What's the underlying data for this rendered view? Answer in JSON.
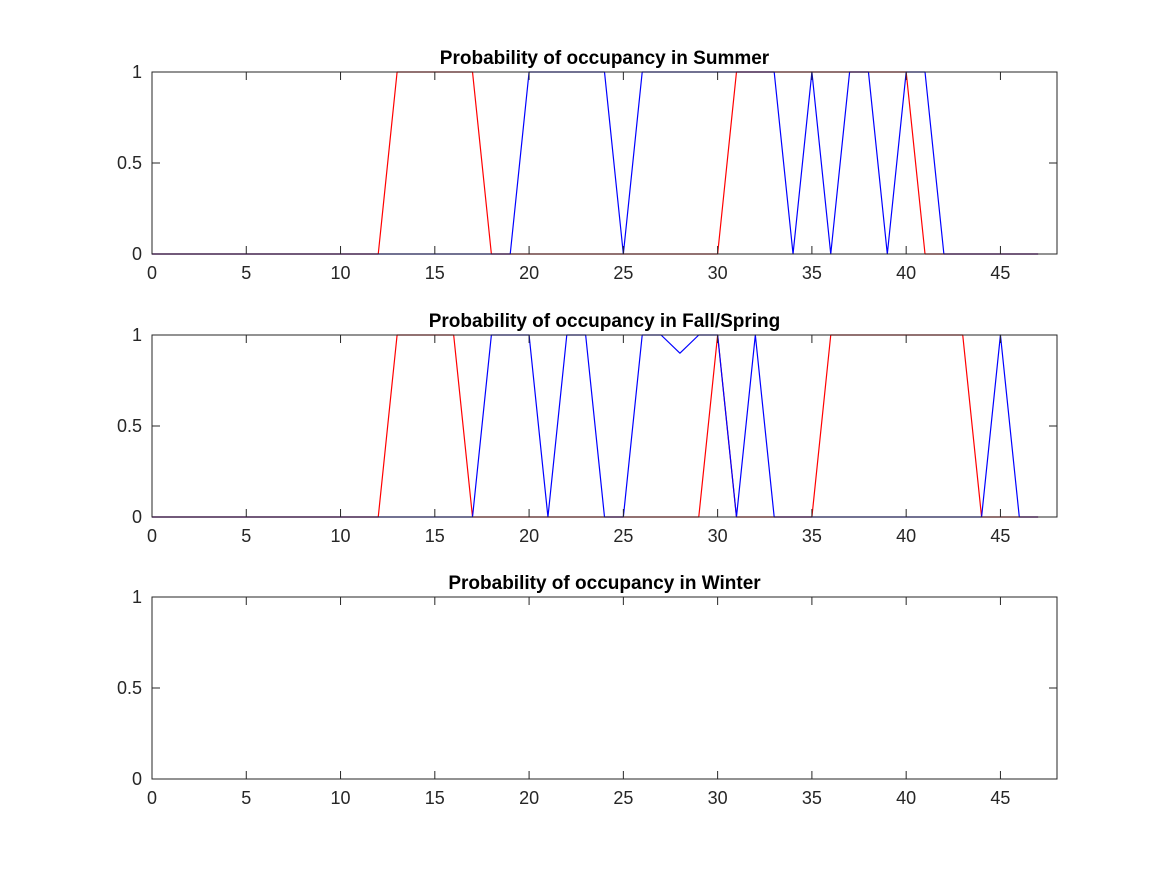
{
  "chart_data": [
    {
      "type": "line",
      "title": "Probability of occupancy in Summer",
      "xlabel": "",
      "ylabel": "",
      "xlim": [
        0,
        48
      ],
      "ylim": [
        0,
        1
      ],
      "xticks": [
        0,
        5,
        10,
        15,
        20,
        25,
        30,
        35,
        40,
        45
      ],
      "xtick_labels": [
        "0",
        "5",
        "10",
        "15",
        "20",
        "25",
        "30",
        "35",
        "40",
        "45"
      ],
      "yticks": [
        0,
        0.5,
        1
      ],
      "ytick_labels": [
        "0",
        "0.5",
        "1"
      ],
      "grid": false,
      "series": [
        {
          "color": "#ff0000",
          "x": [
            0,
            1,
            2,
            3,
            4,
            5,
            6,
            7,
            8,
            9,
            10,
            11,
            12,
            13,
            14,
            15,
            16,
            17,
            18,
            19,
            20,
            21,
            22,
            23,
            24,
            25,
            26,
            27,
            28,
            29,
            30,
            31,
            32,
            33,
            34,
            35,
            36,
            37,
            38,
            39,
            40,
            41,
            42,
            43,
            44,
            45,
            46,
            47
          ],
          "y": [
            0,
            0,
            0,
            0,
            0,
            0,
            0,
            0,
            0,
            0,
            0,
            0,
            0,
            1,
            1,
            1,
            1,
            1,
            0,
            0,
            0,
            0,
            0,
            0,
            0,
            0,
            0,
            0,
            0,
            0,
            0,
            1,
            1,
            1,
            1,
            1,
            1,
            1,
            1,
            1,
            1,
            0,
            0,
            0,
            0,
            0,
            0,
            0
          ]
        },
        {
          "color": "#0000ff",
          "x": [
            0,
            1,
            2,
            3,
            4,
            5,
            6,
            7,
            8,
            9,
            10,
            11,
            12,
            13,
            14,
            15,
            16,
            17,
            18,
            19,
            20,
            21,
            22,
            23,
            24,
            25,
            26,
            27,
            28,
            29,
            30,
            31,
            32,
            33,
            34,
            35,
            36,
            37,
            38,
            39,
            40,
            41,
            42,
            43,
            44,
            45,
            46,
            47
          ],
          "y": [
            0,
            0,
            0,
            0,
            0,
            0,
            0,
            0,
            0,
            0,
            0,
            0,
            0,
            0,
            0,
            0,
            0,
            0,
            0,
            0,
            1,
            1,
            1,
            1,
            1,
            0,
            1,
            1,
            1,
            1,
            1,
            1,
            1,
            1,
            0,
            1,
            0,
            1,
            1,
            0,
            1,
            1,
            0,
            0,
            0,
            0,
            0,
            0
          ]
        }
      ]
    },
    {
      "type": "line",
      "title": "Probability of occupancy in Fall/Spring",
      "xlabel": "",
      "ylabel": "",
      "xlim": [
        0,
        48
      ],
      "ylim": [
        0,
        1
      ],
      "xticks": [
        0,
        5,
        10,
        15,
        20,
        25,
        30,
        35,
        40,
        45
      ],
      "xtick_labels": [
        "0",
        "5",
        "10",
        "15",
        "20",
        "25",
        "30",
        "35",
        "40",
        "45"
      ],
      "yticks": [
        0,
        0.5,
        1
      ],
      "ytick_labels": [
        "0",
        "0.5",
        "1"
      ],
      "grid": false,
      "series": [
        {
          "color": "#ff0000",
          "x": [
            0,
            1,
            2,
            3,
            4,
            5,
            6,
            7,
            8,
            9,
            10,
            11,
            12,
            13,
            14,
            15,
            16,
            17,
            18,
            19,
            20,
            21,
            22,
            23,
            24,
            25,
            26,
            27,
            28,
            29,
            30,
            31,
            32,
            33,
            34,
            35,
            36,
            37,
            38,
            39,
            40,
            41,
            42,
            43,
            44,
            45,
            46,
            47
          ],
          "y": [
            0,
            0,
            0,
            0,
            0,
            0,
            0,
            0,
            0,
            0,
            0,
            0,
            0,
            1,
            1,
            1,
            1,
            0,
            0,
            0,
            0,
            0,
            0,
            0,
            0,
            0,
            0,
            0,
            0,
            0,
            1,
            0,
            0,
            0,
            0,
            0,
            1,
            1,
            1,
            1,
            1,
            1,
            1,
            1,
            0,
            0,
            0,
            0
          ]
        },
        {
          "color": "#0000ff",
          "x": [
            0,
            1,
            2,
            3,
            4,
            5,
            6,
            7,
            8,
            9,
            10,
            11,
            12,
            13,
            14,
            15,
            16,
            17,
            18,
            19,
            20,
            21,
            22,
            23,
            24,
            25,
            26,
            27,
            28,
            29,
            30,
            31,
            32,
            33,
            34,
            35,
            36,
            37,
            38,
            39,
            40,
            41,
            42,
            43,
            44,
            45,
            46,
            47
          ],
          "y": [
            0,
            0,
            0,
            0,
            0,
            0,
            0,
            0,
            0,
            0,
            0,
            0,
            0,
            0,
            0,
            0,
            0,
            0,
            1,
            1,
            1,
            0,
            1,
            1,
            0,
            0,
            1,
            1,
            0.9,
            1,
            1,
            0,
            1,
            0,
            0,
            0,
            0,
            0,
            0,
            0,
            0,
            0,
            0,
            0,
            0,
            1,
            0,
            0
          ]
        }
      ]
    },
    {
      "type": "line",
      "title": "Probability of occupancy in Winter",
      "xlabel": "",
      "ylabel": "",
      "xlim": [
        0,
        48
      ],
      "ylim": [
        0,
        1
      ],
      "xticks": [
        0,
        5,
        10,
        15,
        20,
        25,
        30,
        35,
        40,
        45
      ],
      "xtick_labels": [
        "0",
        "5",
        "10",
        "15",
        "20",
        "25",
        "30",
        "35",
        "40",
        "45"
      ],
      "yticks": [
        0,
        0.5,
        1
      ],
      "ytick_labels": [
        "0",
        "0.5",
        "1"
      ],
      "grid": false,
      "series": []
    }
  ]
}
